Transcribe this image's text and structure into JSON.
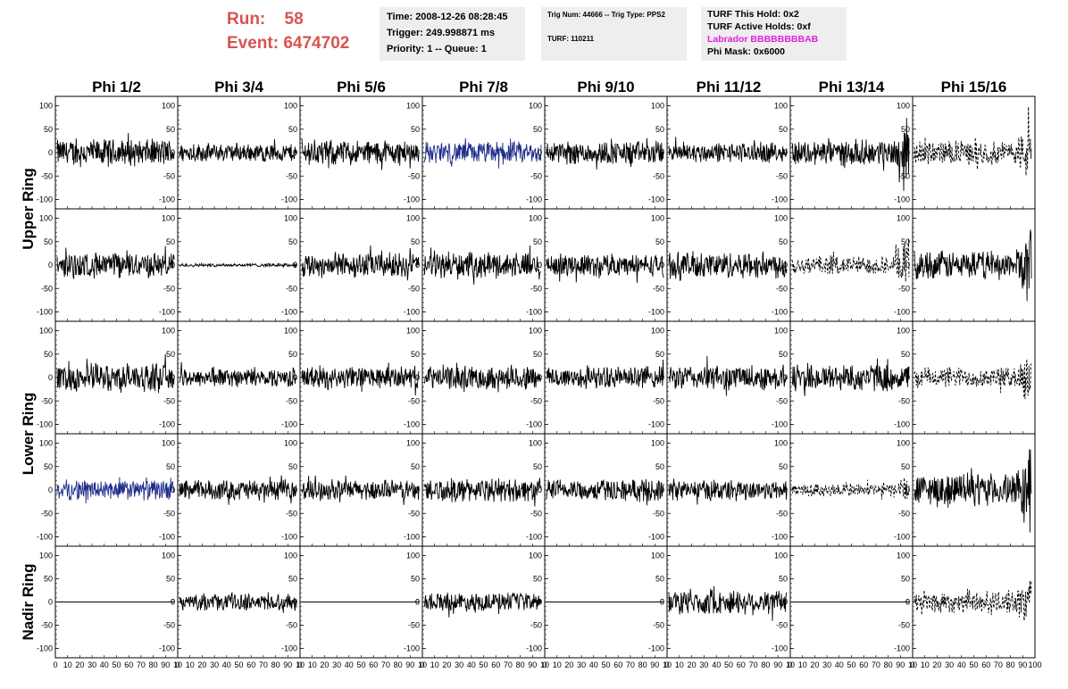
{
  "header": {
    "run_label": "Run:",
    "run_value": "58",
    "event_label": "Event:",
    "event_value": "6474702"
  },
  "info_box_1": {
    "time": "Time: 2008-12-26 08:28:45",
    "trigger": "Trigger: 249.998871 ms",
    "priority": "Priority: 1 -- Queue: 1"
  },
  "info_box_2": {
    "trig": "Trig Num: 44666 -- Trig Type: PPS2",
    "turf": "TURF: 110211"
  },
  "info_box_3": {
    "this_hold": "TURF This Hold: 0x2",
    "active_holds": "TURF Active Holds: 0xf",
    "labrador": "Labrador BBBBBBBBAB",
    "phi_mask": "Phi Mask: 0x6000"
  },
  "colors": {
    "header_red": "#d9534f",
    "labrador_magenta": "#e020e0",
    "trace_black": "#000000",
    "trace_blue": "#1f2d8a",
    "info_bg": "#eeeeee"
  },
  "chart_data": {
    "type": "line",
    "columns": [
      "Phi 1/2",
      "Phi 3/4",
      "Phi 5/6",
      "Phi 7/8",
      "Phi 9/10",
      "Phi 11/12",
      "Phi 13/14",
      "Phi 15/16"
    ],
    "rows": [
      "Upper Ring",
      "Lower Ring",
      "Nadir Ring"
    ],
    "subrows": 5,
    "y_ticks": [
      100,
      50,
      0,
      -50,
      -100
    ],
    "y_tick_labels": [
      "100",
      "50",
      "0",
      "-50",
      "-100"
    ],
    "x_tick_labels": [
      "0",
      "10",
      "20",
      "30",
      "40",
      "50",
      "60",
      "70",
      "80",
      "90",
      "10"
    ],
    "last_x_tick_labels": [
      "0",
      "10",
      "20",
      "30",
      "40",
      "50",
      "60",
      "70",
      "80",
      "90",
      "100"
    ],
    "ylim": [
      -120,
      120
    ],
    "xlim": [
      0,
      100
    ],
    "grid": false,
    "panels": [
      [
        {
          "style": "solid",
          "amp": 32,
          "color": "black"
        },
        {
          "style": "solid",
          "amp": 22,
          "color": "black"
        },
        {
          "style": "solid",
          "amp": 30,
          "color": "black"
        },
        {
          "style": "solid",
          "amp": 26,
          "color": "blue"
        },
        {
          "style": "solid",
          "amp": 28,
          "color": "black"
        },
        {
          "style": "solid",
          "amp": 24,
          "color": "black"
        },
        {
          "style": "solid",
          "amp": 30,
          "color": "black",
          "burst": true
        },
        {
          "style": "dashed",
          "amp": 28,
          "color": "black",
          "burst": true
        }
      ],
      [
        {
          "style": "solid",
          "amp": 30,
          "color": "black"
        },
        {
          "style": "solid",
          "amp": 4,
          "color": "black"
        },
        {
          "style": "solid",
          "amp": 30,
          "color": "black"
        },
        {
          "style": "solid",
          "amp": 30,
          "color": "black"
        },
        {
          "style": "solid",
          "amp": 26,
          "color": "black"
        },
        {
          "style": "solid",
          "amp": 32,
          "color": "black"
        },
        {
          "style": "dashed",
          "amp": 22,
          "color": "black",
          "burst": true
        },
        {
          "style": "solid",
          "amp": 34,
          "color": "black",
          "burst": true
        }
      ],
      [
        {
          "style": "solid",
          "amp": 34,
          "color": "black"
        },
        {
          "style": "solid",
          "amp": 22,
          "color": "black"
        },
        {
          "style": "solid",
          "amp": 26,
          "color": "black"
        },
        {
          "style": "solid",
          "amp": 28,
          "color": "black"
        },
        {
          "style": "solid",
          "amp": 26,
          "color": "black"
        },
        {
          "style": "solid",
          "amp": 30,
          "color": "black"
        },
        {
          "style": "solid",
          "amp": 32,
          "color": "black"
        },
        {
          "style": "dashed",
          "amp": 24,
          "color": "black",
          "burst": true
        }
      ],
      [
        {
          "style": "solid",
          "amp": 24,
          "color": "blue"
        },
        {
          "style": "solid",
          "amp": 24,
          "color": "black"
        },
        {
          "style": "solid",
          "amp": 24,
          "color": "black"
        },
        {
          "style": "solid",
          "amp": 28,
          "color": "black"
        },
        {
          "style": "solid",
          "amp": 26,
          "color": "black"
        },
        {
          "style": "solid",
          "amp": 24,
          "color": "black"
        },
        {
          "style": "dashed",
          "amp": 16,
          "color": "black",
          "burst": true
        },
        {
          "style": "solid",
          "amp": 38,
          "color": "black",
          "burst": true
        }
      ],
      [
        {
          "style": "flat",
          "amp": 0,
          "color": "black"
        },
        {
          "style": "solid",
          "amp": 20,
          "color": "black"
        },
        {
          "style": "flat",
          "amp": 0,
          "color": "black"
        },
        {
          "style": "solid",
          "amp": 22,
          "color": "black"
        },
        {
          "style": "flat",
          "amp": 0,
          "color": "black"
        },
        {
          "style": "solid",
          "amp": 30,
          "color": "black"
        },
        {
          "style": "flat",
          "amp": 0,
          "color": "black"
        },
        {
          "style": "dashed",
          "amp": 26,
          "color": "black",
          "burst": true
        }
      ]
    ]
  }
}
